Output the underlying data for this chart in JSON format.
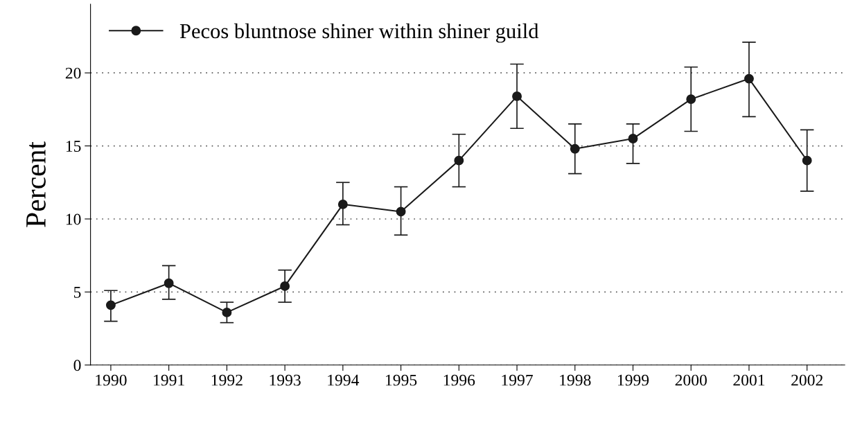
{
  "chart_data": {
    "type": "line",
    "ylabel": "Percent",
    "categories": [
      "1990",
      "1991",
      "1992",
      "1993",
      "1994",
      "1995",
      "1996",
      "1997",
      "1998",
      "1999",
      "2000",
      "2001",
      "2002"
    ],
    "series": [
      {
        "name": "Pecos bluntnose shiner within shiner guild",
        "color": "#1a1a1a",
        "values": [
          4.1,
          5.6,
          3.6,
          5.4,
          11.0,
          10.5,
          14.0,
          18.4,
          14.8,
          15.5,
          18.2,
          19.6,
          14.0
        ],
        "errors": [
          [
            3.0,
            5.1
          ],
          [
            4.5,
            6.8
          ],
          [
            2.9,
            4.3
          ],
          [
            4.3,
            6.5
          ],
          [
            9.6,
            12.5
          ],
          [
            8.9,
            12.2
          ],
          [
            12.2,
            15.8
          ],
          [
            16.2,
            20.6
          ],
          [
            13.1,
            16.5
          ],
          [
            13.8,
            16.5
          ],
          [
            16.0,
            20.4
          ],
          [
            17.0,
            22.1
          ],
          [
            11.9,
            16.1
          ]
        ]
      }
    ],
    "ylim": [
      0,
      24.7
    ],
    "yticks": [
      0,
      5,
      10,
      15,
      20
    ],
    "grid": "y",
    "legend": "top left",
    "marker": "circle",
    "line_style": "solid"
  }
}
